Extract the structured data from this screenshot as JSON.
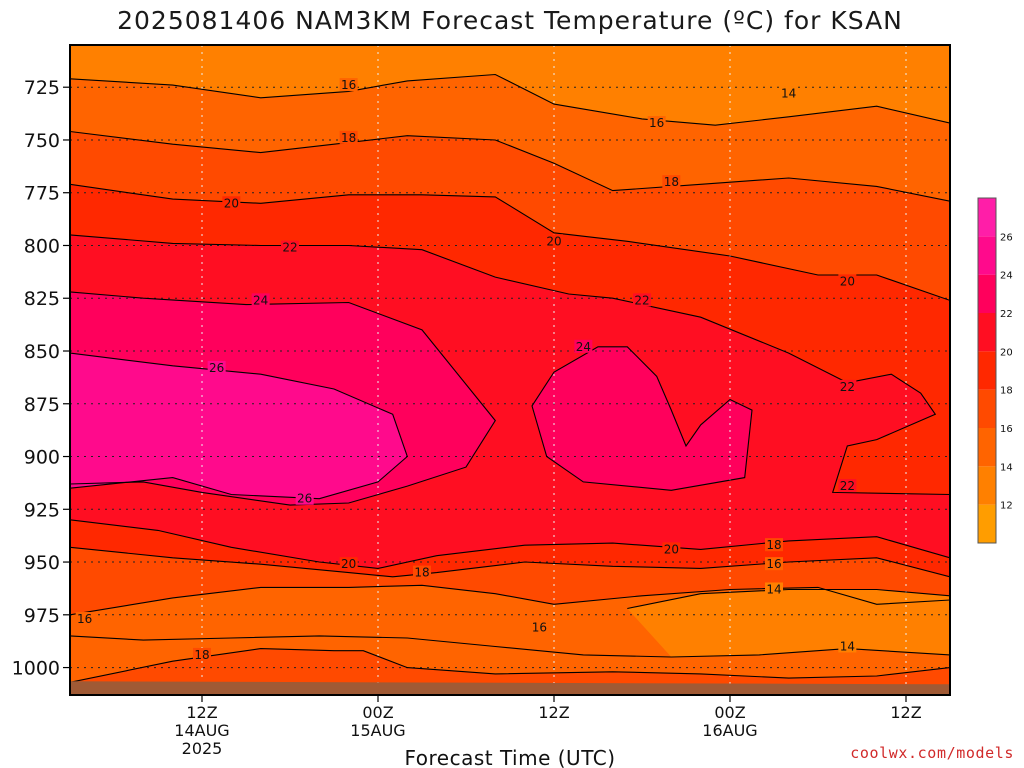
{
  "page": {
    "title": "2025081406 NAM3KM Forecast Temperature (ºC) for KSAN",
    "credit": "coolwx.com/models"
  },
  "chart_data": {
    "type": "heatmap",
    "title": "2025081406 NAM3KM Forecast Temperature (ºC) for KSAN",
    "xlabel": "Forecast Time (UTC)",
    "ylabel": "",
    "x_axis": {
      "unit": "forecast hour",
      "range": [
        -3,
        57
      ],
      "ticks": [
        {
          "x": 6,
          "lines": [
            "12Z",
            "14AUG",
            "2025"
          ]
        },
        {
          "x": 18,
          "lines": [
            "00Z",
            "15AUG"
          ]
        },
        {
          "x": 30,
          "lines": [
            "12Z"
          ]
        },
        {
          "x": 42,
          "lines": [
            "00Z",
            "16AUG"
          ]
        },
        {
          "x": 54,
          "lines": [
            "12Z"
          ]
        }
      ]
    },
    "y_axis": {
      "unit": "hPa",
      "range": [
        1013,
        705
      ],
      "ticks": [
        725,
        750,
        775,
        800,
        825,
        850,
        875,
        900,
        925,
        950,
        975,
        1000
      ]
    },
    "grid": true,
    "colorbar": {
      "position": "right",
      "levels": [
        12,
        14,
        16,
        18,
        20,
        22,
        24,
        26
      ],
      "labels": [
        "12",
        "14",
        "16",
        "18",
        "20",
        "22",
        "24",
        "26"
      ],
      "colors": [
        "#ff9d00",
        "#ff8000",
        "#ff6400",
        "#ff4a00",
        "#ff2800",
        "#ff0e22",
        "#ff005c",
        "#ff0a8c",
        "#ff1ea8"
      ]
    },
    "surface_color": "#a05a35",
    "contours": [
      {
        "value": 16,
        "points": [
          [
            -3,
            721
          ],
          [
            4,
            724
          ],
          [
            10,
            730
          ],
          [
            16,
            727
          ],
          [
            20,
            722
          ],
          [
            26,
            719
          ],
          [
            30,
            733
          ],
          [
            36,
            740
          ],
          [
            41,
            743
          ],
          [
            46,
            739
          ],
          [
            52,
            734
          ],
          [
            57,
            742
          ]
        ]
      },
      {
        "value": 18,
        "points": [
          [
            -3,
            746
          ],
          [
            4,
            752
          ],
          [
            10,
            756
          ],
          [
            15,
            752
          ],
          [
            20,
            748
          ],
          [
            26,
            750
          ],
          [
            30,
            761
          ],
          [
            34,
            774
          ],
          [
            40,
            771
          ],
          [
            46,
            768
          ],
          [
            52,
            772
          ],
          [
            57,
            779
          ]
        ]
      },
      {
        "value": 20,
        "points": [
          [
            -3,
            771
          ],
          [
            4,
            778
          ],
          [
            10,
            780
          ],
          [
            16,
            776
          ],
          [
            21,
            776
          ],
          [
            26,
            777
          ],
          [
            30,
            794
          ],
          [
            35,
            798
          ],
          [
            42,
            805
          ],
          [
            48,
            814
          ],
          [
            52,
            814
          ],
          [
            57,
            826
          ]
        ]
      },
      {
        "value": 22,
        "points": [
          [
            -3,
            795
          ],
          [
            4,
            799
          ],
          [
            10,
            800
          ],
          [
            16,
            800
          ],
          [
            21,
            802
          ],
          [
            26,
            815
          ],
          [
            31,
            823
          ],
          [
            34,
            825
          ],
          [
            40,
            834
          ],
          [
            46,
            851
          ],
          [
            50,
            865
          ],
          [
            53,
            861
          ],
          [
            55,
            870
          ],
          [
            56,
            880
          ],
          [
            52,
            892
          ],
          [
            50,
            895
          ],
          [
            49,
            917
          ],
          [
            57,
            918
          ]
        ]
      },
      {
        "value": 24,
        "points": [
          [
            -3,
            822
          ],
          [
            2,
            825
          ],
          [
            9,
            828
          ],
          [
            16,
            827
          ],
          [
            21,
            840
          ],
          [
            26,
            883
          ],
          [
            24,
            905
          ],
          [
            20,
            914
          ],
          [
            16,
            922
          ],
          [
            12,
            923
          ],
          [
            6,
            917
          ],
          [
            2,
            912
          ],
          [
            -3,
            913
          ]
        ]
      },
      {
        "value": 26,
        "points": [
          [
            -3,
            851
          ],
          [
            4,
            857
          ],
          [
            10,
            861
          ],
          [
            15,
            868
          ],
          [
            19,
            880
          ],
          [
            20,
            900
          ],
          [
            18,
            912
          ],
          [
            14,
            920
          ],
          [
            8,
            918
          ],
          [
            4,
            910
          ],
          [
            -3,
            915
          ]
        ]
      },
      {
        "value": 24,
        "points": [
          [
            28.5,
            876
          ],
          [
            30,
            860
          ],
          [
            33,
            848
          ],
          [
            35,
            848
          ],
          [
            37,
            862
          ],
          [
            38,
            878
          ],
          [
            39,
            895
          ],
          [
            40,
            885
          ],
          [
            42,
            873
          ],
          [
            43.5,
            878
          ],
          [
            43,
            910
          ],
          [
            38,
            916
          ],
          [
            32,
            912
          ],
          [
            29.5,
            900
          ]
        ]
      },
      {
        "value": 20,
        "points": [
          [
            -3,
            930
          ],
          [
            3,
            935
          ],
          [
            8,
            943
          ],
          [
            14,
            950
          ],
          [
            18,
            953
          ],
          [
            22,
            947
          ],
          [
            28,
            942
          ],
          [
            34,
            941
          ],
          [
            40,
            944
          ],
          [
            46,
            940
          ],
          [
            52,
            938
          ],
          [
            57,
            948
          ]
        ]
      },
      {
        "value": 18,
        "points": [
          [
            -3,
            943
          ],
          [
            4,
            948
          ],
          [
            10,
            951
          ],
          [
            16,
            955
          ],
          [
            19,
            957
          ],
          [
            22,
            955
          ],
          [
            28,
            950
          ],
          [
            34,
            952
          ],
          [
            40,
            953
          ],
          [
            46,
            950
          ],
          [
            52,
            948
          ],
          [
            57,
            957
          ]
        ]
      },
      {
        "value": 16,
        "points": [
          [
            -3,
            975
          ],
          [
            4,
            967
          ],
          [
            10,
            962
          ],
          [
            16,
            962
          ],
          [
            21,
            961
          ],
          [
            26,
            965
          ],
          [
            30,
            970
          ],
          [
            36,
            966
          ],
          [
            42,
            963
          ],
          [
            48,
            962
          ],
          [
            52,
            970
          ],
          [
            57,
            968
          ]
        ]
      },
      {
        "value": 14,
        "points": [
          [
            35,
            972
          ],
          [
            40,
            965
          ],
          [
            46,
            963
          ],
          [
            52,
            963
          ],
          [
            57,
            966
          ]
        ]
      },
      {
        "value": 14,
        "points": [
          [
            -3,
            985
          ],
          [
            2,
            987
          ],
          [
            8,
            986
          ],
          [
            14,
            985
          ],
          [
            20,
            986
          ],
          [
            26,
            990
          ],
          [
            32,
            994
          ],
          [
            38,
            995
          ],
          [
            44,
            994
          ],
          [
            50,
            991
          ],
          [
            57,
            994
          ]
        ]
      },
      {
        "value": 16,
        "points": [
          [
            -3,
            1007
          ],
          [
            4,
            997
          ],
          [
            10,
            991
          ],
          [
            15,
            992
          ],
          [
            17,
            992
          ],
          [
            20,
            1000
          ],
          [
            26,
            1003
          ],
          [
            34,
            1002
          ],
          [
            40,
            1003
          ],
          [
            46,
            1005
          ],
          [
            52,
            1004
          ],
          [
            57,
            1000
          ]
        ]
      }
    ],
    "contour_labels": [
      {
        "text": "16",
        "x": 16,
        "y": 724
      },
      {
        "text": "14",
        "x": 46,
        "y": 728
      },
      {
        "text": "16",
        "x": 37,
        "y": 742
      },
      {
        "text": "18",
        "x": 16,
        "y": 749
      },
      {
        "text": "18",
        "x": 38,
        "y": 770
      },
      {
        "text": "20",
        "x": 8,
        "y": 780
      },
      {
        "text": "20",
        "x": 30,
        "y": 798
      },
      {
        "text": "22",
        "x": 12,
        "y": 801
      },
      {
        "text": "20",
        "x": 50,
        "y": 817
      },
      {
        "text": "24",
        "x": 10,
        "y": 826
      },
      {
        "text": "22",
        "x": 36,
        "y": 826
      },
      {
        "text": "26",
        "x": 7,
        "y": 858
      },
      {
        "text": "24",
        "x": 32,
        "y": 848
      },
      {
        "text": "22",
        "x": 50,
        "y": 867
      },
      {
        "text": "22",
        "x": 50,
        "y": 914
      },
      {
        "text": "26",
        "x": 13,
        "y": 920
      },
      {
        "text": "20",
        "x": 38,
        "y": 944
      },
      {
        "text": "18",
        "x": 45,
        "y": 942
      },
      {
        "text": "20",
        "x": 16,
        "y": 951
      },
      {
        "text": "18",
        "x": 21,
        "y": 955
      },
      {
        "text": "16",
        "x": 45,
        "y": 951
      },
      {
        "text": "14",
        "x": 45,
        "y": 963
      },
      {
        "text": "16",
        "x": -2,
        "y": 977
      },
      {
        "text": "16",
        "x": 29,
        "y": 981
      },
      {
        "text": "14",
        "x": 50,
        "y": 990
      },
      {
        "text": "18",
        "x": 6,
        "y": 994
      }
    ]
  }
}
